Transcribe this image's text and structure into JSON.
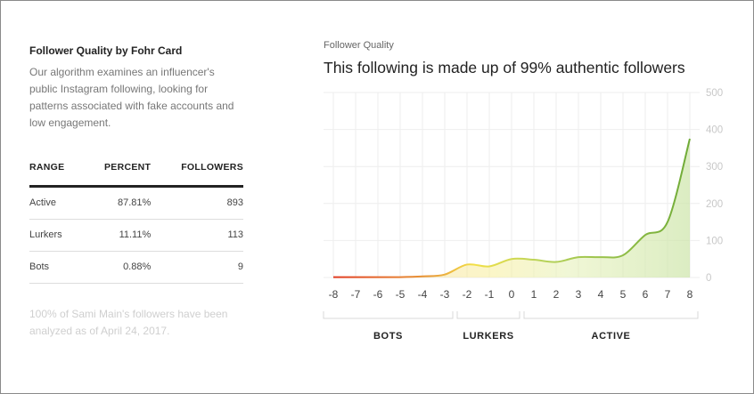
{
  "left": {
    "title": "Follower Quality by Fohr Card",
    "description": "Our algorithm examines an influencer's public Instagram following, looking for patterns associated with fake accounts and low engagement.",
    "table": {
      "headers": [
        "RANGE",
        "PERCENT",
        "FOLLOWERS"
      ],
      "rows": [
        {
          "range": "Active",
          "percent": "87.81%",
          "followers": "893"
        },
        {
          "range": "Lurkers",
          "percent": "11.11%",
          "followers": "113"
        },
        {
          "range": "Bots",
          "percent": "0.88%",
          "followers": "9"
        }
      ]
    },
    "footnote": "100% of Sami Main's followers have been analyzed as of April 24, 2017."
  },
  "chart_data": {
    "type": "area",
    "title": "This following is made up of 99% authentic followers",
    "subtitle": "Follower Quality",
    "x": [
      -8,
      -7,
      -6,
      -5,
      -4,
      -3,
      -2,
      -1,
      0,
      1,
      2,
      3,
      4,
      5,
      6,
      7,
      8
    ],
    "values": [
      1,
      1,
      1,
      1,
      3,
      8,
      35,
      30,
      50,
      48,
      42,
      55,
      55,
      60,
      115,
      150,
      375
    ],
    "ylim": [
      0,
      500
    ],
    "yticks": [
      0,
      100,
      200,
      300,
      400,
      500
    ],
    "grid": true,
    "groups": [
      {
        "label": "BOTS",
        "from": -8,
        "to": -3
      },
      {
        "label": "LURKERS",
        "from": -2,
        "to": 0
      },
      {
        "label": "ACTIVE",
        "from": 1,
        "to": 8
      }
    ],
    "colors": {
      "bots": "#e0301e",
      "lurkers": "#f5e23a",
      "active": "#7cb342",
      "grid": "#eeeeee"
    }
  }
}
